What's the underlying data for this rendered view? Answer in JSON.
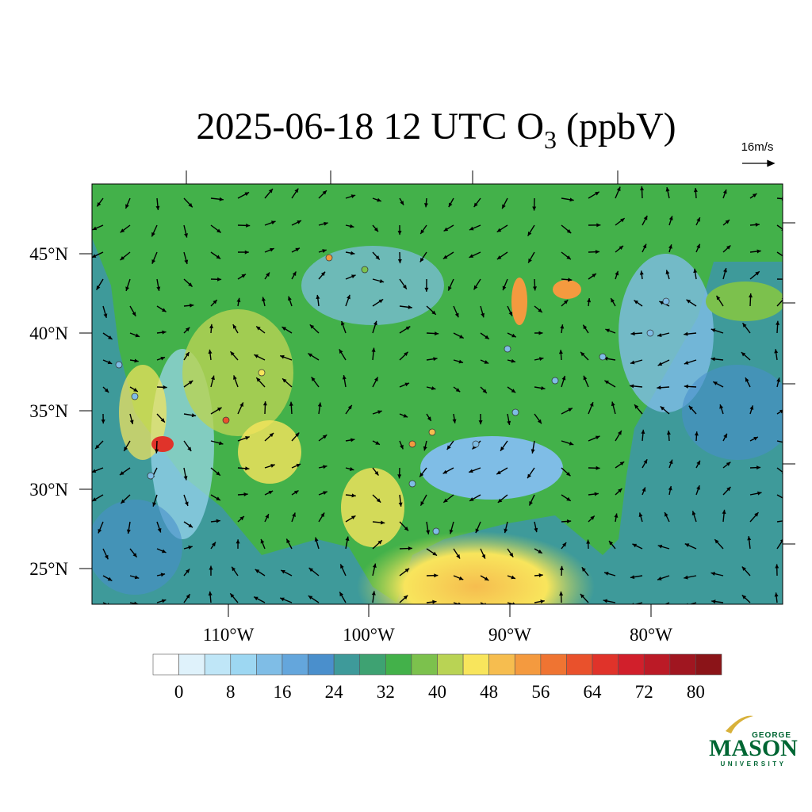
{
  "title": {
    "text": "2025-06-18 12 UTC O",
    "subscript": "3",
    "unit": " (ppbV)"
  },
  "wind_scale": "16m/s",
  "latitude_labels": [
    "45°N",
    "40°N",
    "35°N",
    "30°N",
    "25°N"
  ],
  "longitude_labels": [
    "110°W",
    "100°W",
    "90°W",
    "80°W"
  ],
  "colorbar": {
    "colors": [
      "#ffffff",
      "#dff2fb",
      "#bfe6f7",
      "#9dd7f2",
      "#7fbde6",
      "#64a6dc",
      "#4a8fcc",
      "#3e9a9a",
      "#3ea272",
      "#43b14a",
      "#7cc14d",
      "#b9d354",
      "#f8e55c",
      "#f6bd4f",
      "#f49a3f",
      "#ef7432",
      "#e9512c",
      "#e0332a",
      "#d11f2b",
      "#bb1a26",
      "#a01620",
      "#8b1418"
    ],
    "ticks": [
      0,
      8,
      16,
      24,
      32,
      40,
      48,
      56,
      64,
      72,
      80
    ]
  },
  "logo": {
    "top": "GEORGE",
    "main": "MASON",
    "bottom": "UNIVERSITY"
  }
}
